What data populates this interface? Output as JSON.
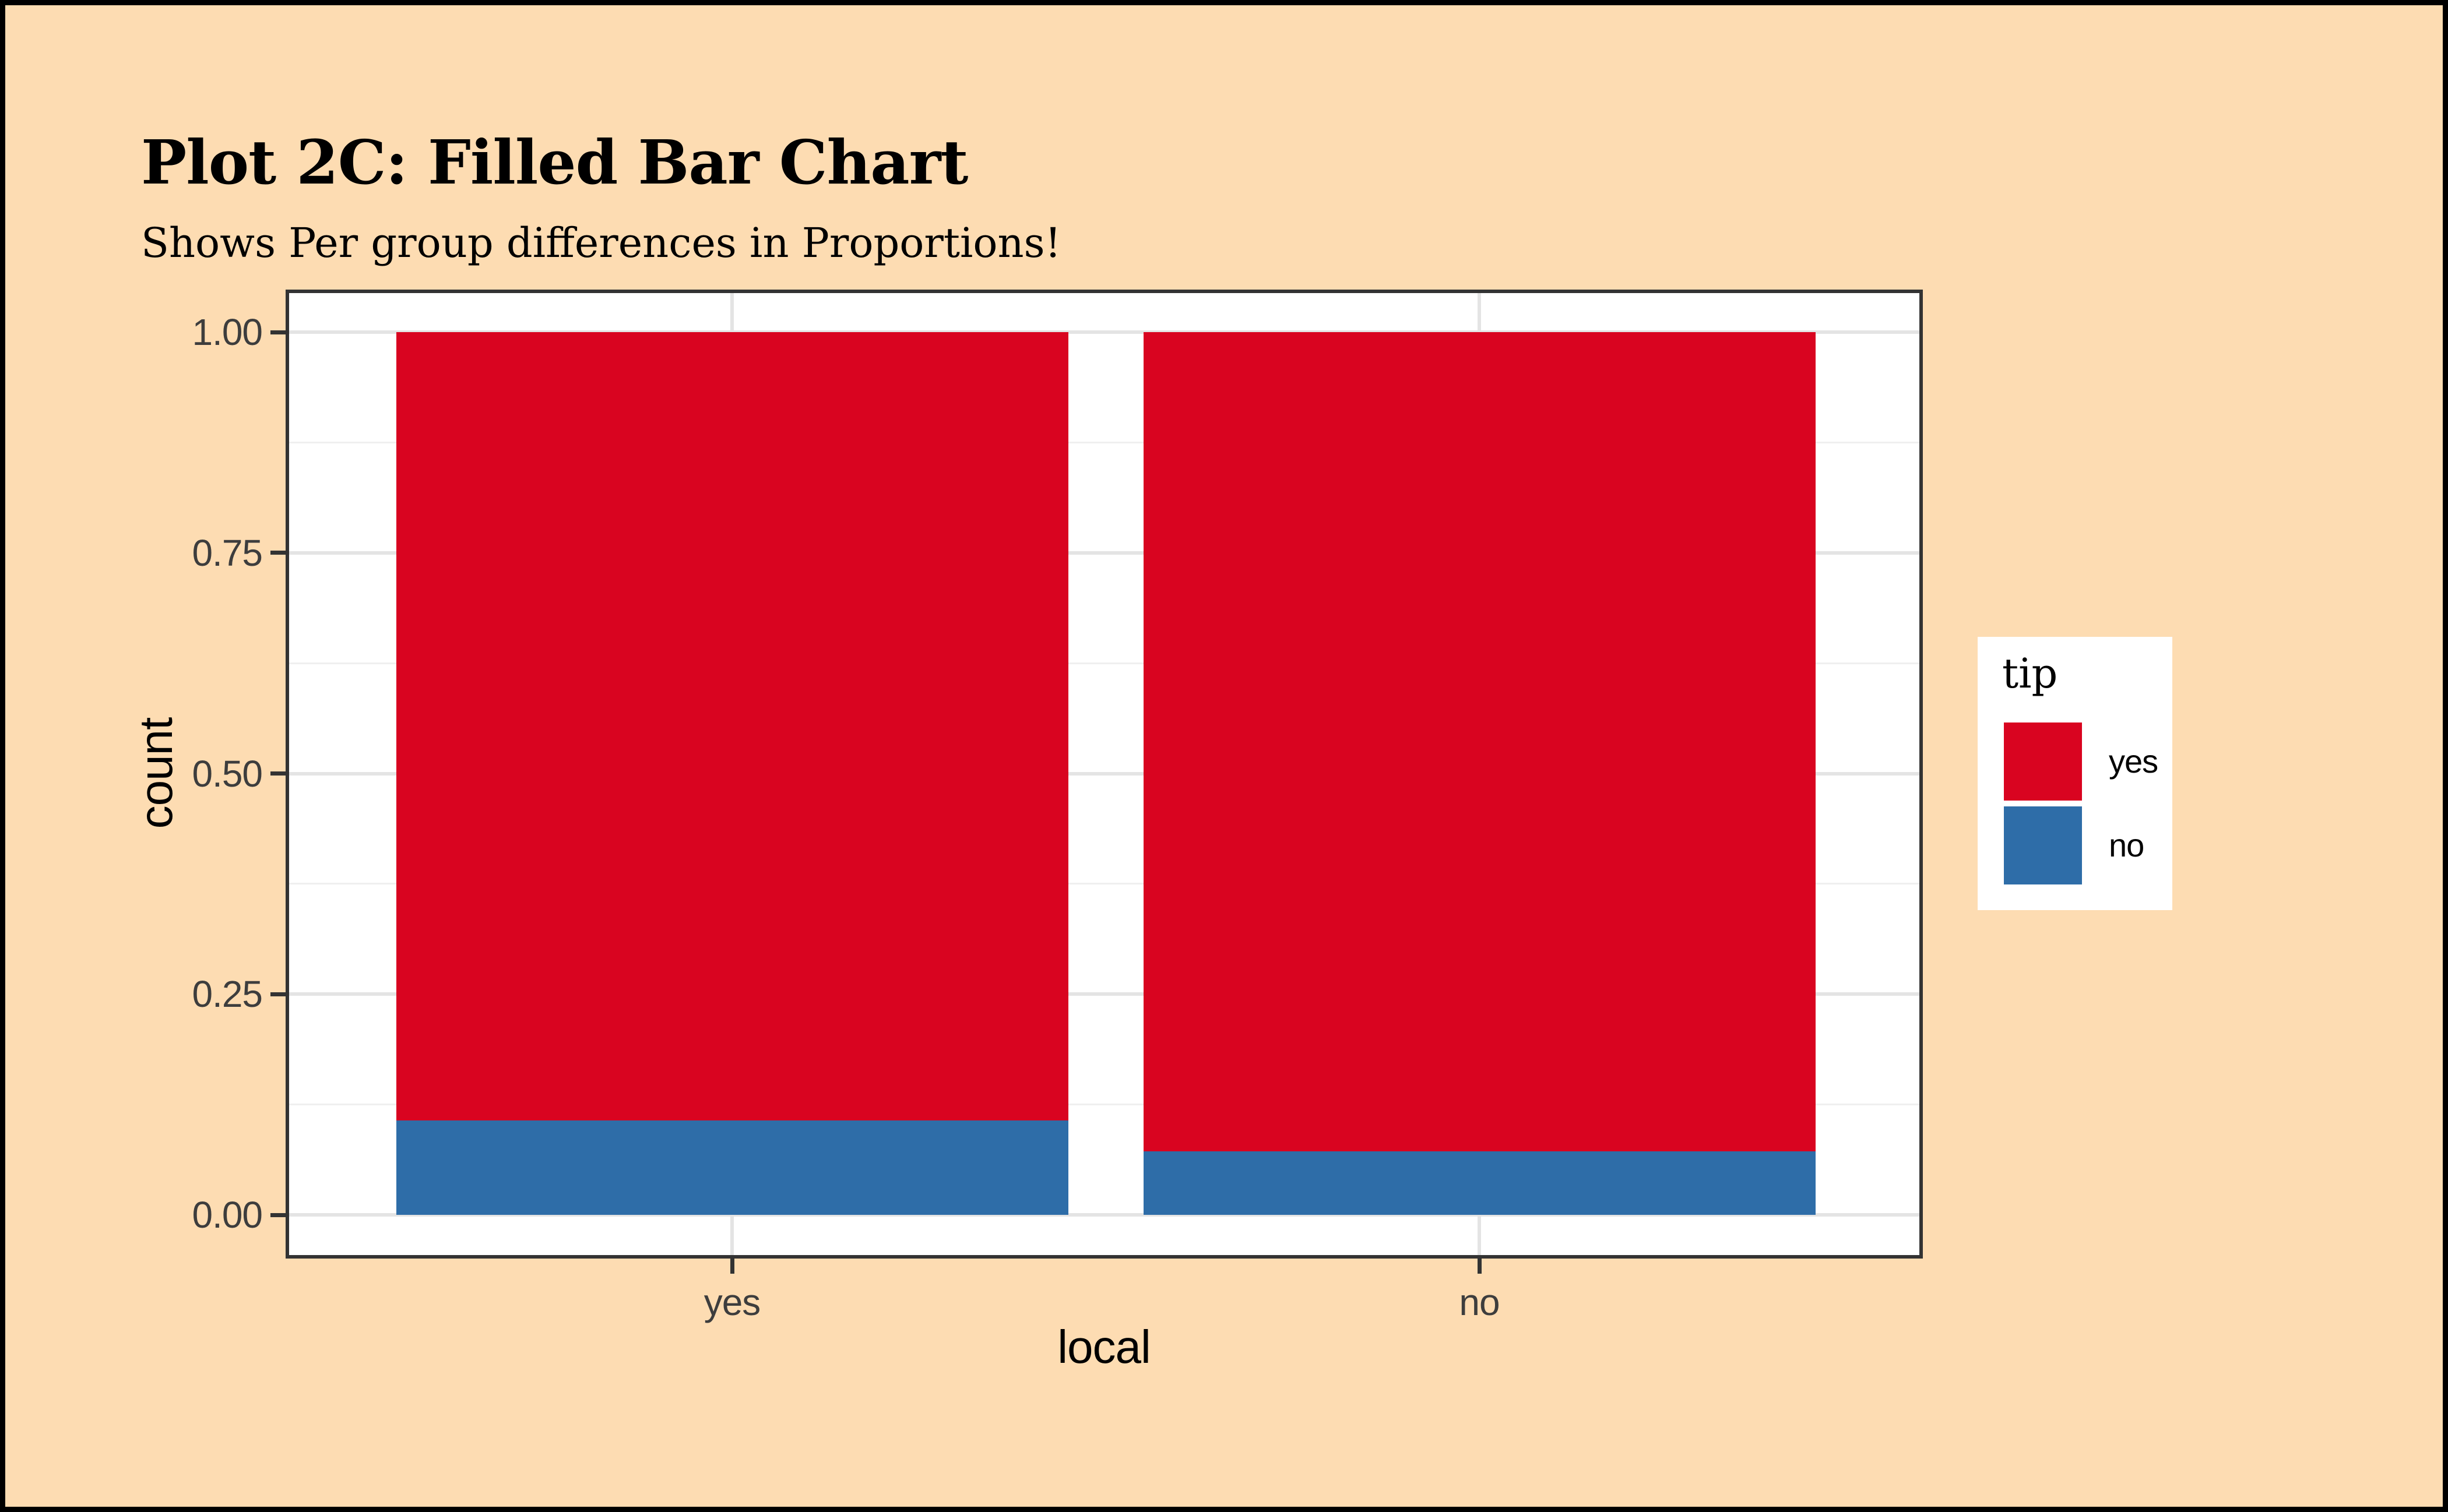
{
  "title": "Plot 2C: Filled Bar Chart",
  "subtitle": "Shows Per group differences in Proportions!",
  "chart_data": {
    "type": "bar",
    "stacked": true,
    "position": "fill",
    "title": "Plot 2C: Filled Bar Chart",
    "subtitle": "Shows Per group differences in Proportions!",
    "xlabel": "local",
    "ylabel": "count",
    "categories": [
      "yes",
      "no"
    ],
    "series": [
      {
        "name": "yes",
        "color": "#D90420",
        "values": [
          0.893,
          0.928
        ]
      },
      {
        "name": "no",
        "color": "#2E6DA8",
        "values": [
          0.107,
          0.072
        ]
      }
    ],
    "ylim": [
      0,
      1
    ],
    "y_tick_values": [
      1.0,
      0.75,
      0.5,
      0.25,
      0.0
    ],
    "y_tick_labels": [
      "1.00",
      "0.75",
      "0.50",
      "0.25",
      "0.00"
    ],
    "y_minor_tick_values": [
      0.875,
      0.625,
      0.375,
      0.125
    ],
    "grid": true,
    "legend": {
      "title": "tip",
      "position": "right",
      "entries": [
        {
          "label": "yes",
          "color": "#D90420"
        },
        {
          "label": "no",
          "color": "#2E6DA8"
        }
      ]
    }
  },
  "colors": {
    "page_background": "#FDDCB2",
    "outer_border": "#000000",
    "panel_background": "#FFFFFF",
    "panel_border": "#333333",
    "grid_major": "#E4E4E4",
    "grid_minor": "#EFEFEF",
    "tick_mark": "#333333",
    "tick_label": "#3D3D3D",
    "axis_title": "#000000",
    "bar_yes": "#D90420",
    "bar_no": "#2E6DA8"
  }
}
